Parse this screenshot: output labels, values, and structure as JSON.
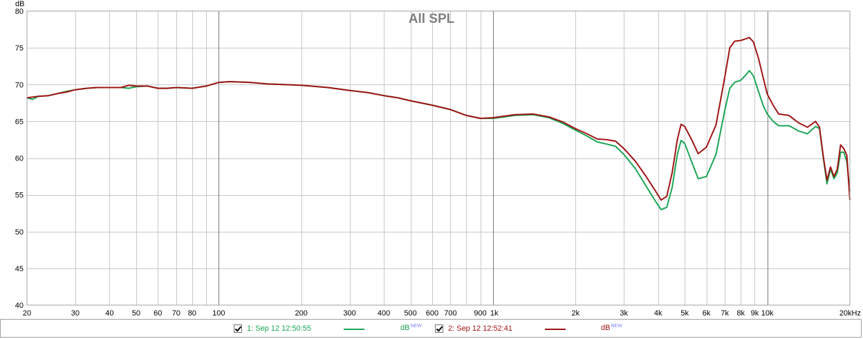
{
  "chart_data": {
    "type": "line",
    "title": "All SPL",
    "ylabel": "dB",
    "xlabel": "",
    "x_scale": "log",
    "xlim": [
      20,
      20000
    ],
    "ylim": [
      40,
      80
    ],
    "grid": true,
    "legend_position": "bottom",
    "y_ticks": [
      "80",
      "75",
      "70",
      "65",
      "60",
      "55",
      "50",
      "45",
      "40"
    ],
    "x_ticks": [
      {
        "f": 20,
        "label": "20"
      },
      {
        "f": 30,
        "label": "30"
      },
      {
        "f": 40,
        "label": "40"
      },
      {
        "f": 50,
        "label": "50"
      },
      {
        "f": 60,
        "label": "60"
      },
      {
        "f": 70,
        "label": "70"
      },
      {
        "f": 80,
        "label": "80"
      },
      {
        "f": 100,
        "label": "100"
      },
      {
        "f": 200,
        "label": "200"
      },
      {
        "f": 300,
        "label": "300"
      },
      {
        "f": 400,
        "label": "400"
      },
      {
        "f": 500,
        "label": "500"
      },
      {
        "f": 600,
        "label": "600"
      },
      {
        "f": 700,
        "label": "700"
      },
      {
        "f": 900,
        "label": "900"
      },
      {
        "f": 1000,
        "label": "1k"
      },
      {
        "f": 2000,
        "label": "2k"
      },
      {
        "f": 3000,
        "label": "3k"
      },
      {
        "f": 4000,
        "label": "4k"
      },
      {
        "f": 5000,
        "label": "5k"
      },
      {
        "f": 6000,
        "label": "6k"
      },
      {
        "f": 7000,
        "label": "7k"
      },
      {
        "f": 8000,
        "label": "8k"
      },
      {
        "f": 9000,
        "label": "9k"
      },
      {
        "f": 10000,
        "label": "10k"
      },
      {
        "f": 20000,
        "label": "20kHz"
      }
    ],
    "series": [
      {
        "name": "1: Sep 12 12:50:55",
        "color": "#1aa553",
        "points": [
          [
            20,
            68.2
          ],
          [
            21,
            68.0
          ],
          [
            22,
            68.4
          ],
          [
            24,
            68.5
          ],
          [
            26,
            68.8
          ],
          [
            28,
            69.1
          ],
          [
            30,
            69.3
          ],
          [
            33,
            69.5
          ],
          [
            36,
            69.6
          ],
          [
            40,
            69.6
          ],
          [
            44,
            69.6
          ],
          [
            47,
            69.5
          ],
          [
            50,
            69.7
          ],
          [
            55,
            69.8
          ],
          [
            60,
            69.5
          ],
          [
            65,
            69.5
          ],
          [
            70,
            69.6
          ],
          [
            80,
            69.5
          ],
          [
            90,
            69.8
          ],
          [
            100,
            70.3
          ],
          [
            110,
            70.4
          ],
          [
            130,
            70.3
          ],
          [
            150,
            70.1
          ],
          [
            200,
            69.9
          ],
          [
            250,
            69.6
          ],
          [
            300,
            69.2
          ],
          [
            350,
            68.9
          ],
          [
            400,
            68.5
          ],
          [
            450,
            68.2
          ],
          [
            500,
            67.8
          ],
          [
            600,
            67.2
          ],
          [
            700,
            66.6
          ],
          [
            800,
            65.8
          ],
          [
            900,
            65.4
          ],
          [
            1000,
            65.4
          ],
          [
            1100,
            65.6
          ],
          [
            1200,
            65.8
          ],
          [
            1400,
            65.9
          ],
          [
            1600,
            65.5
          ],
          [
            1800,
            64.7
          ],
          [
            2000,
            63.8
          ],
          [
            2200,
            63.0
          ],
          [
            2400,
            62.2
          ],
          [
            2600,
            61.9
          ],
          [
            2800,
            61.6
          ],
          [
            3000,
            60.5
          ],
          [
            3300,
            58.6
          ],
          [
            3600,
            56.3
          ],
          [
            3900,
            54.2
          ],
          [
            4100,
            53.0
          ],
          [
            4300,
            53.3
          ],
          [
            4500,
            56.0
          ],
          [
            4700,
            60.5
          ],
          [
            4850,
            62.4
          ],
          [
            5000,
            62.0
          ],
          [
            5300,
            59.5
          ],
          [
            5600,
            57.2
          ],
          [
            6000,
            57.5
          ],
          [
            6500,
            60.5
          ],
          [
            7000,
            66.5
          ],
          [
            7300,
            69.5
          ],
          [
            7600,
            70.3
          ],
          [
            8000,
            70.6
          ],
          [
            8300,
            71.2
          ],
          [
            8600,
            71.9
          ],
          [
            8900,
            71.2
          ],
          [
            9300,
            69.0
          ],
          [
            9700,
            67.0
          ],
          [
            10000,
            66.0
          ],
          [
            10500,
            65.0
          ],
          [
            11000,
            64.4
          ],
          [
            12000,
            64.4
          ],
          [
            13000,
            63.7
          ],
          [
            14000,
            63.3
          ],
          [
            15000,
            64.3
          ],
          [
            15500,
            64.0
          ],
          [
            16000,
            60.0
          ],
          [
            16500,
            56.5
          ],
          [
            17000,
            58.5
          ],
          [
            17500,
            57.2
          ],
          [
            18000,
            58.0
          ],
          [
            18500,
            60.8
          ],
          [
            19000,
            60.8
          ],
          [
            19500,
            59.5
          ],
          [
            20000,
            55.5
          ]
        ]
      },
      {
        "name": "2: Sep 12 12:52:41",
        "color": "#a01414",
        "points": [
          [
            20,
            68.2
          ],
          [
            22,
            68.4
          ],
          [
            24,
            68.5
          ],
          [
            26,
            68.8
          ],
          [
            28,
            69.0
          ],
          [
            30,
            69.3
          ],
          [
            33,
            69.5
          ],
          [
            36,
            69.6
          ],
          [
            40,
            69.6
          ],
          [
            44,
            69.6
          ],
          [
            47,
            69.9
          ],
          [
            50,
            69.8
          ],
          [
            55,
            69.8
          ],
          [
            60,
            69.5
          ],
          [
            65,
            69.5
          ],
          [
            70,
            69.6
          ],
          [
            80,
            69.5
          ],
          [
            90,
            69.8
          ],
          [
            100,
            70.3
          ],
          [
            110,
            70.4
          ],
          [
            130,
            70.3
          ],
          [
            150,
            70.1
          ],
          [
            200,
            69.9
          ],
          [
            250,
            69.6
          ],
          [
            300,
            69.2
          ],
          [
            350,
            68.9
          ],
          [
            400,
            68.5
          ],
          [
            450,
            68.2
          ],
          [
            500,
            67.8
          ],
          [
            600,
            67.2
          ],
          [
            700,
            66.6
          ],
          [
            800,
            65.8
          ],
          [
            900,
            65.4
          ],
          [
            1000,
            65.5
          ],
          [
            1100,
            65.7
          ],
          [
            1200,
            65.9
          ],
          [
            1400,
            66.0
          ],
          [
            1600,
            65.6
          ],
          [
            1800,
            64.9
          ],
          [
            2000,
            64.0
          ],
          [
            2200,
            63.3
          ],
          [
            2400,
            62.6
          ],
          [
            2600,
            62.5
          ],
          [
            2800,
            62.3
          ],
          [
            3000,
            61.3
          ],
          [
            3300,
            59.6
          ],
          [
            3600,
            57.6
          ],
          [
            3900,
            55.6
          ],
          [
            4100,
            54.3
          ],
          [
            4300,
            54.8
          ],
          [
            4500,
            58.0
          ],
          [
            4700,
            62.5
          ],
          [
            4850,
            64.6
          ],
          [
            5000,
            64.3
          ],
          [
            5300,
            62.5
          ],
          [
            5600,
            60.6
          ],
          [
            6000,
            61.5
          ],
          [
            6500,
            64.5
          ],
          [
            7000,
            71.0
          ],
          [
            7300,
            75.0
          ],
          [
            7600,
            75.9
          ],
          [
            8000,
            76.0
          ],
          [
            8300,
            76.2
          ],
          [
            8600,
            76.4
          ],
          [
            8900,
            75.8
          ],
          [
            9300,
            73.5
          ],
          [
            9700,
            70.7
          ],
          [
            10000,
            68.7
          ],
          [
            10500,
            67.2
          ],
          [
            11000,
            66.0
          ],
          [
            12000,
            65.8
          ],
          [
            13000,
            64.8
          ],
          [
            14000,
            64.2
          ],
          [
            15000,
            65.0
          ],
          [
            15500,
            64.2
          ],
          [
            16000,
            60.2
          ],
          [
            16500,
            57.0
          ],
          [
            17000,
            58.8
          ],
          [
            17500,
            57.5
          ],
          [
            18000,
            58.5
          ],
          [
            18500,
            61.8
          ],
          [
            19000,
            61.3
          ],
          [
            19500,
            60.4
          ],
          [
            20000,
            54.3
          ]
        ]
      }
    ]
  },
  "legend": [
    {
      "checked": true,
      "label": "1: Sep 12 12:50:55",
      "unit": "dB",
      "unit_sup": "NEW",
      "color": "#1aa553"
    },
    {
      "checked": true,
      "label": "2: Sep 12 12:52:41",
      "unit": "dB",
      "unit_sup": "NEW",
      "color": "#a01414"
    }
  ]
}
